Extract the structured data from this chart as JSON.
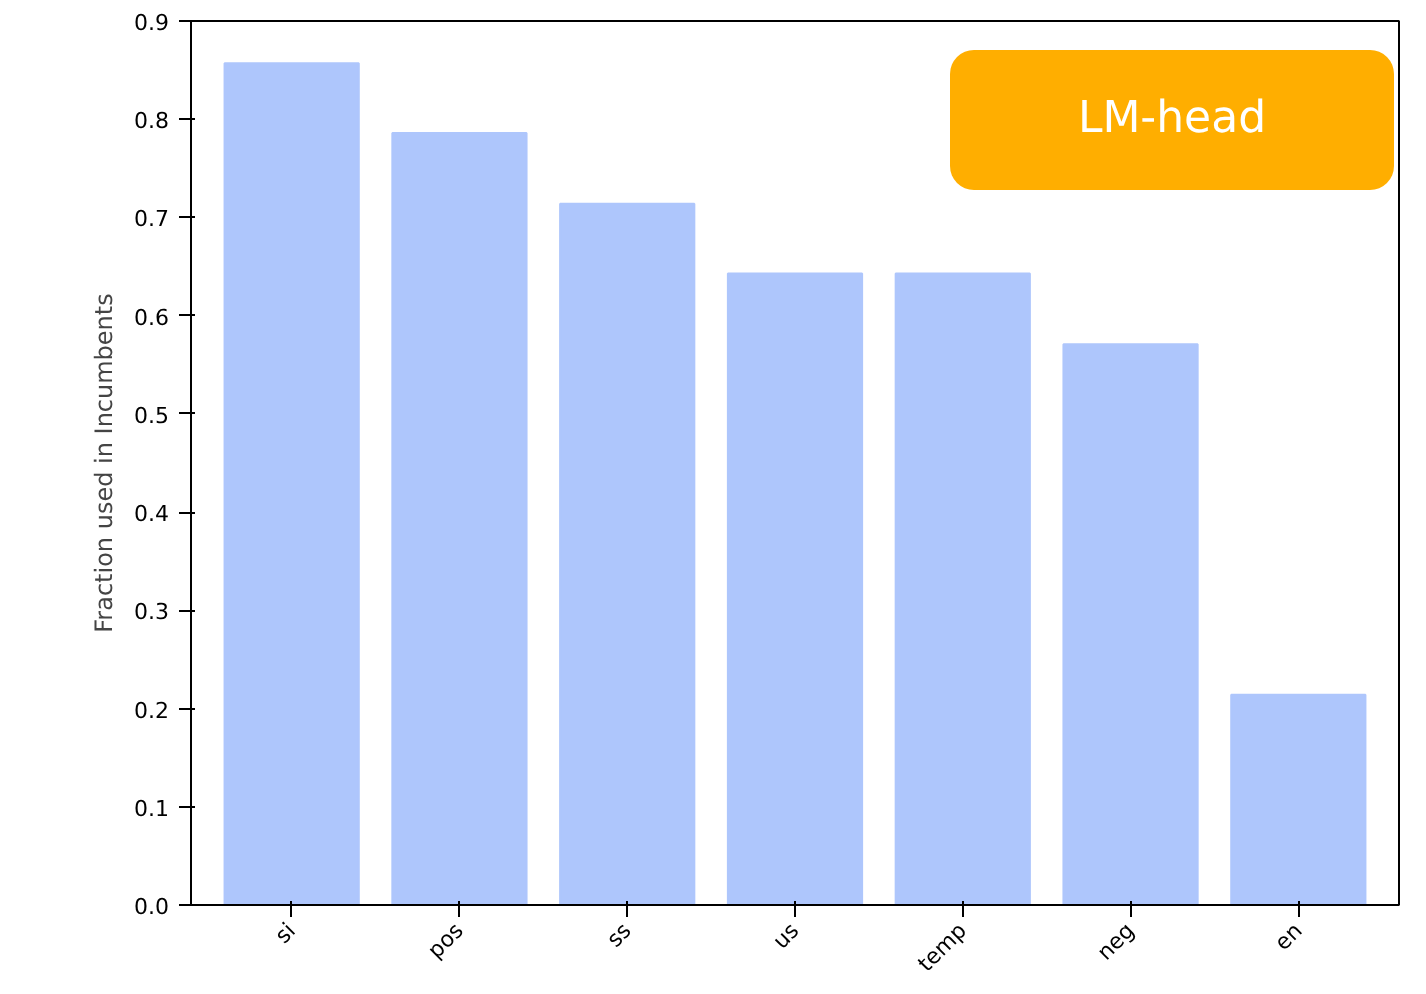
{
  "chart_data": {
    "type": "bar",
    "ylabel": "Fraction used in Incumbents",
    "categories": [
      "si",
      "pos",
      "ss",
      "us",
      "temp",
      "neg",
      "en"
    ],
    "values": [
      0.857,
      0.786,
      0.714,
      0.643,
      0.643,
      0.571,
      0.214
    ],
    "color": "#aec6fc",
    "ylim": [
      0,
      0.9
    ],
    "yticks": [
      {
        "value": 0,
        "label": "0.0"
      },
      0.1,
      0.2,
      0.3,
      0.4,
      0.5,
      0.6,
      0.7,
      0.8,
      0.9
    ],
    "grid": false,
    "annotations": [
      "LM-head"
    ]
  }
}
